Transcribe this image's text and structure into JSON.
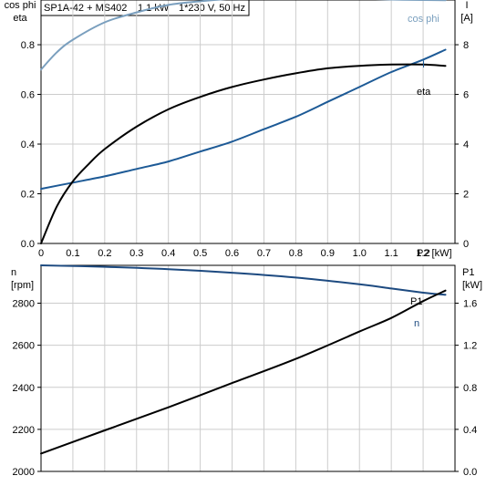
{
  "header": {
    "pump_model": "SP1A-42 + MS402",
    "power_rating": "1.1 kW",
    "supply": "1*230 V, 50 Hz"
  },
  "colors": {
    "cos_phi": "#7a9fbe",
    "current": "#1d5a96",
    "eta": "#000000",
    "speed": "#1d4a80",
    "p1": "#000000",
    "grid": "#cccccc"
  },
  "chart_data": [
    {
      "type": "line",
      "id": "top",
      "xlabel": "P2 [kW]",
      "xlim": [
        0,
        1.3
      ],
      "x_ticks": [
        0,
        0.1,
        0.2,
        0.3,
        0.4,
        0.5,
        0.6,
        0.7,
        0.8,
        0.9,
        1.0,
        1.1,
        1.2
      ],
      "x_tick_labels": [
        "0",
        "0.1",
        "0.2",
        "0.3",
        "0.4",
        "0.5",
        "0.6",
        "0.7",
        "0.8",
        "0.9",
        "1.0",
        "1.1",
        "1.2"
      ],
      "left_axis": {
        "label_line1": "cos phi",
        "label_line2": "eta",
        "ylim": [
          0,
          0.98
        ],
        "ticks": [
          0,
          0.2,
          0.4,
          0.6,
          0.8
        ],
        "tick_labels": [
          "0.0",
          "0.2",
          "0.4",
          "0.6",
          "0.8"
        ]
      },
      "right_axis": {
        "label_line1": "I",
        "label_line2": "[A]",
        "ylim": [
          0,
          9.8
        ],
        "ticks": [
          0,
          2,
          4,
          6,
          8
        ],
        "tick_labels": [
          "0",
          "2",
          "4",
          "6",
          "8"
        ]
      },
      "series": [
        {
          "name": "cos phi",
          "axis": "left",
          "color_key": "cos_phi",
          "x": [
            0,
            0.05,
            0.1,
            0.2,
            0.3,
            0.4,
            0.5,
            0.6,
            0.7,
            0.8,
            0.9,
            1.0,
            1.1,
            1.2,
            1.27
          ],
          "y": [
            0.7,
            0.77,
            0.82,
            0.89,
            0.93,
            0.96,
            0.975,
            0.985,
            0.99,
            0.99,
            0.988,
            0.985,
            0.982,
            0.98,
            0.979
          ]
        },
        {
          "name": "I",
          "axis": "right",
          "color_key": "current",
          "x": [
            0,
            0.1,
            0.2,
            0.3,
            0.4,
            0.5,
            0.6,
            0.7,
            0.8,
            0.9,
            1.0,
            1.1,
            1.2,
            1.27
          ],
          "y": [
            2.2,
            2.45,
            2.7,
            3.0,
            3.3,
            3.7,
            4.1,
            4.6,
            5.1,
            5.7,
            6.3,
            6.9,
            7.4,
            7.8
          ]
        },
        {
          "name": "eta",
          "axis": "left",
          "color_key": "eta",
          "x": [
            0,
            0.05,
            0.1,
            0.15,
            0.2,
            0.3,
            0.4,
            0.5,
            0.6,
            0.7,
            0.8,
            0.9,
            1.0,
            1.1,
            1.2,
            1.27
          ],
          "y": [
            0.0,
            0.15,
            0.25,
            0.32,
            0.38,
            0.47,
            0.54,
            0.59,
            0.63,
            0.66,
            0.685,
            0.705,
            0.715,
            0.72,
            0.72,
            0.715
          ]
        }
      ]
    },
    {
      "type": "line",
      "id": "bottom",
      "xlim": [
        0,
        1.3
      ],
      "x_ticks": [
        0,
        0.1,
        0.2,
        0.3,
        0.4,
        0.5,
        0.6,
        0.7,
        0.8,
        0.9,
        1.0,
        1.1,
        1.2
      ],
      "left_axis": {
        "label_line1": "n",
        "label_line2": "[rpm]",
        "ylim": [
          2000,
          2980
        ],
        "ticks": [
          2000,
          2200,
          2400,
          2600,
          2800
        ],
        "tick_labels": [
          "2000",
          "2200",
          "2400",
          "2600",
          "2800"
        ]
      },
      "right_axis": {
        "label_line1": "P1",
        "label_line2": "[kW]",
        "ylim": [
          0,
          1.96
        ],
        "ticks": [
          0,
          0.4,
          0.8,
          1.2,
          1.6
        ],
        "tick_labels": [
          "0.0",
          "0.4",
          "0.8",
          "1.2",
          "1.6"
        ]
      },
      "series": [
        {
          "name": "n",
          "axis": "left",
          "color_key": "speed",
          "x": [
            0,
            0.2,
            0.4,
            0.6,
            0.8,
            1.0,
            1.1,
            1.2,
            1.27
          ],
          "y": [
            2980,
            2973,
            2962,
            2945,
            2922,
            2890,
            2870,
            2850,
            2840
          ]
        },
        {
          "name": "P1",
          "axis": "right",
          "color_key": "p1",
          "x": [
            0,
            0.2,
            0.4,
            0.6,
            0.8,
            1.0,
            1.1,
            1.2,
            1.27
          ],
          "y": [
            0.17,
            0.39,
            0.61,
            0.84,
            1.07,
            1.33,
            1.46,
            1.62,
            1.72
          ]
        }
      ]
    }
  ]
}
